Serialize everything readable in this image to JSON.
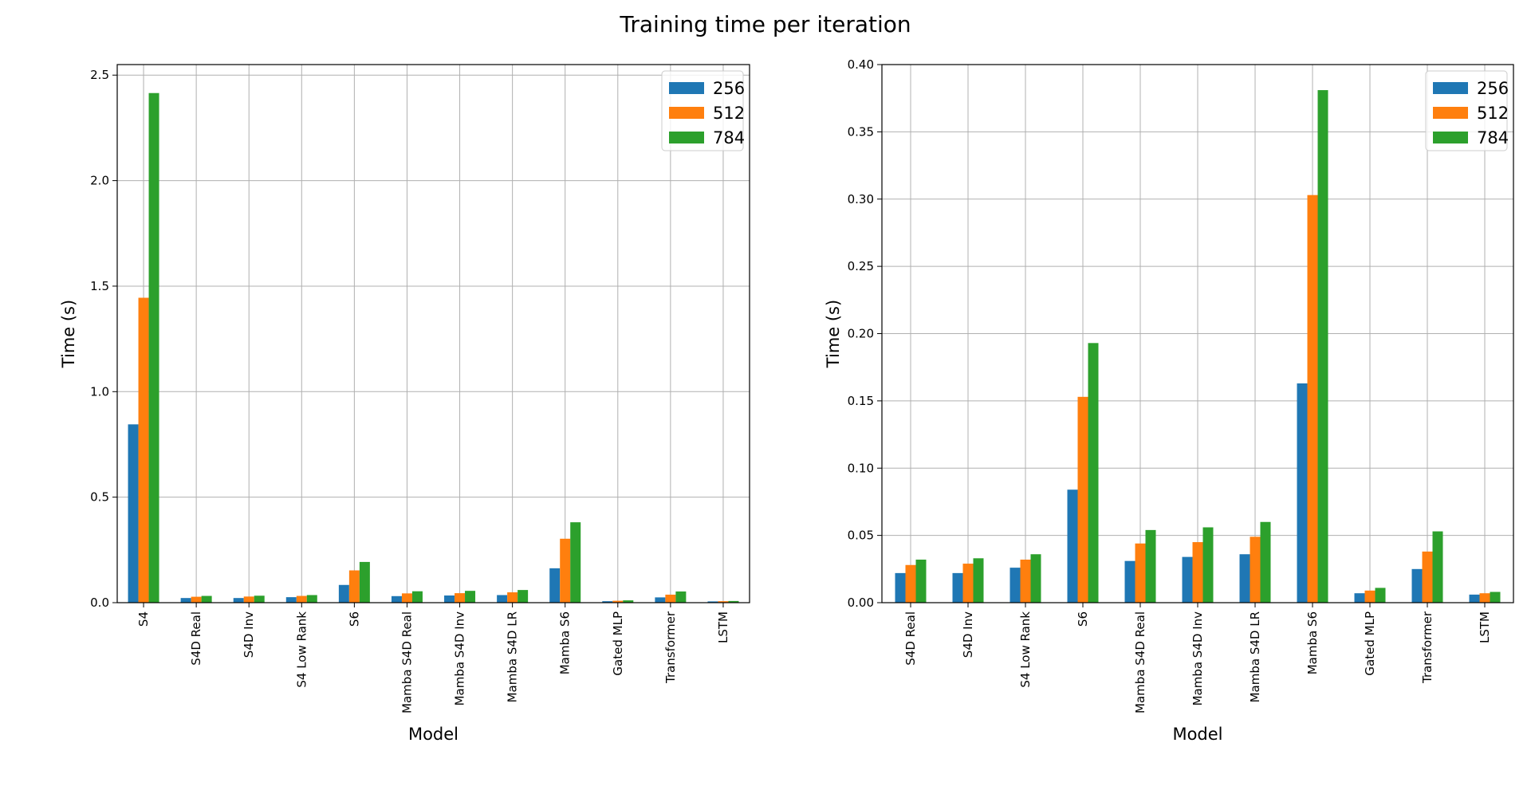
{
  "figure": {
    "title": "Training time per iteration"
  },
  "colors": {
    "256": "#1f77b4",
    "512": "#ff7f0e",
    "784": "#2ca02c",
    "grid": "#b0b0b0"
  },
  "chart_data": [
    {
      "type": "bar",
      "xlabel": "Model",
      "ylabel": "Time (s)",
      "ylim": [
        0,
        2.55
      ],
      "yticks": [
        "0.0",
        "0.5",
        "1.0",
        "1.5",
        "2.0",
        "2.5"
      ],
      "grid": true,
      "legend": "upper-right",
      "categories": [
        "S4",
        "S4D Real",
        "S4D Inv",
        "S4 Low Rank",
        "S6",
        "Mamba S4D Real",
        "Mamba S4D Inv",
        "Mamba S4D LR",
        "Mamba S6",
        "Gated MLP",
        "Transformer",
        "LSTM"
      ],
      "series": [
        {
          "name": "256",
          "values": [
            0.845,
            0.022,
            0.022,
            0.026,
            0.084,
            0.031,
            0.034,
            0.036,
            0.163,
            0.007,
            0.025,
            0.006
          ]
        },
        {
          "name": "512",
          "values": [
            1.445,
            0.028,
            0.029,
            0.032,
            0.153,
            0.044,
            0.045,
            0.049,
            0.303,
            0.009,
            0.038,
            0.007
          ]
        },
        {
          "name": "784",
          "values": [
            2.415,
            0.032,
            0.033,
            0.036,
            0.193,
            0.054,
            0.056,
            0.06,
            0.381,
            0.011,
            0.053,
            0.008
          ]
        }
      ]
    },
    {
      "type": "bar",
      "xlabel": "Model",
      "ylabel": "Time (s)",
      "ylim": [
        0,
        0.4
      ],
      "yticks": [
        "0.00",
        "0.05",
        "0.10",
        "0.15",
        "0.20",
        "0.25",
        "0.30",
        "0.35",
        "0.40"
      ],
      "grid": true,
      "legend": "upper-right",
      "categories": [
        "S4D Real",
        "S4D Inv",
        "S4 Low Rank",
        "S6",
        "Mamba S4D Real",
        "Mamba S4D Inv",
        "Mamba S4D LR",
        "Mamba S6",
        "Gated MLP",
        "Transformer",
        "LSTM"
      ],
      "series": [
        {
          "name": "256",
          "values": [
            0.022,
            0.022,
            0.026,
            0.084,
            0.031,
            0.034,
            0.036,
            0.163,
            0.007,
            0.025,
            0.006
          ]
        },
        {
          "name": "512",
          "values": [
            0.028,
            0.029,
            0.032,
            0.153,
            0.044,
            0.045,
            0.049,
            0.303,
            0.009,
            0.038,
            0.007
          ]
        },
        {
          "name": "784",
          "values": [
            0.032,
            0.033,
            0.036,
            0.193,
            0.054,
            0.056,
            0.06,
            0.381,
            0.011,
            0.053,
            0.008
          ]
        }
      ]
    }
  ]
}
